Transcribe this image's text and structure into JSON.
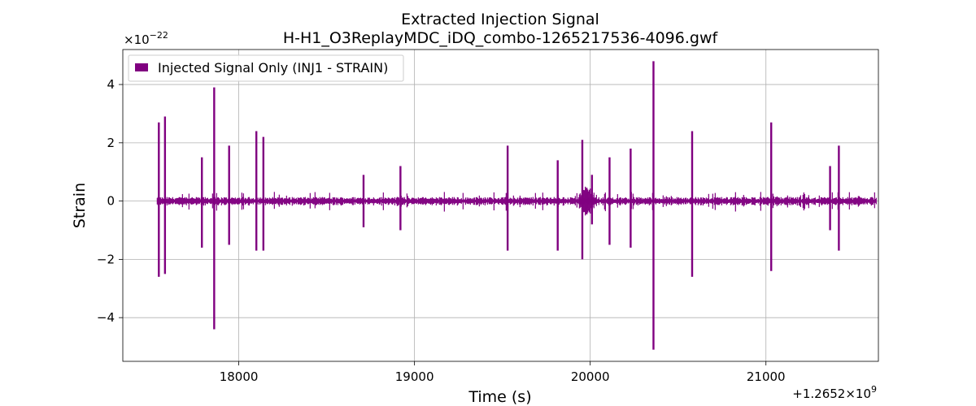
{
  "chart_data": {
    "type": "line",
    "title": "Extracted Injection Signal",
    "subtitle": "H-H1_O3ReplayMDC_iDQ_combo-1265217536-4096.gwf",
    "xlabel": "Time (s)",
    "ylabel": "Strain",
    "x_offset_label": "+1.2652×10",
    "x_offset_exp": "9",
    "y_scale_label": "×10",
    "y_scale_exp": "−22",
    "xlim": [
      17340,
      21640
    ],
    "ylim": [
      -5.5,
      5.2
    ],
    "x_start": 17536,
    "x_end": 21632,
    "baseline_amplitude": 0.1,
    "xticks": [
      {
        "value": 18000,
        "label": "18000"
      },
      {
        "value": 19000,
        "label": "19000"
      },
      {
        "value": 20000,
        "label": "20000"
      },
      {
        "value": 21000,
        "label": "21000"
      }
    ],
    "yticks": [
      {
        "value": -4,
        "label": "−4"
      },
      {
        "value": -2,
        "label": "−2"
      },
      {
        "value": 0,
        "label": "0"
      },
      {
        "value": 2,
        "label": "2"
      },
      {
        "value": 4,
        "label": "4"
      }
    ],
    "grid": true,
    "legend_position": "top-left",
    "series": [
      {
        "name": "Injected Signal Only (INJ1 - STRAIN)",
        "color": "#800080",
        "spikes": [
          {
            "x": 17545,
            "max": 2.7,
            "min": -2.6
          },
          {
            "x": 17580,
            "max": 2.9,
            "min": -2.5
          },
          {
            "x": 17790,
            "max": 1.5,
            "min": -1.6
          },
          {
            "x": 17860,
            "max": 3.9,
            "min": -4.4
          },
          {
            "x": 17945,
            "max": 1.9,
            "min": -1.5
          },
          {
            "x": 18100,
            "max": 2.4,
            "min": -1.7
          },
          {
            "x": 18140,
            "max": 2.2,
            "min": -1.7
          },
          {
            "x": 18710,
            "max": 0.9,
            "min": -0.9
          },
          {
            "x": 18920,
            "max": 1.2,
            "min": -1.0
          },
          {
            "x": 19530,
            "max": 1.9,
            "min": -1.7
          },
          {
            "x": 19815,
            "max": 1.4,
            "min": -1.7
          },
          {
            "x": 19955,
            "max": 2.1,
            "min": -2.0
          },
          {
            "x": 20010,
            "max": 0.9,
            "min": -0.8
          },
          {
            "x": 20110,
            "max": 1.5,
            "min": -1.5
          },
          {
            "x": 20230,
            "max": 1.8,
            "min": -1.6
          },
          {
            "x": 20360,
            "max": 4.8,
            "min": -5.1
          },
          {
            "x": 20580,
            "max": 2.4,
            "min": -2.6
          },
          {
            "x": 21030,
            "max": 2.7,
            "min": -2.4
          },
          {
            "x": 21365,
            "max": 1.2,
            "min": -1.0
          },
          {
            "x": 21415,
            "max": 1.9,
            "min": -1.7
          }
        ],
        "burst_region": {
          "x_start": 19940,
          "x_end": 20040,
          "max": 0.5,
          "min": -0.5
        }
      }
    ]
  }
}
